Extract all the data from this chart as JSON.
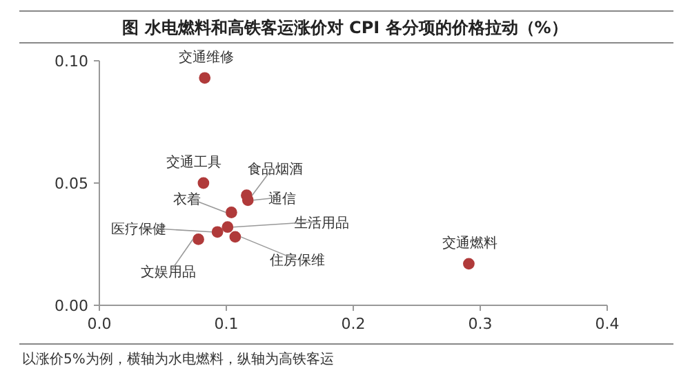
{
  "chart_data": {
    "type": "scatter",
    "title": "图  水电燃料和高铁客运涨价对 CPI 各分项的价格拉动（%）",
    "x": [
      0.083,
      0.082,
      0.116,
      0.117,
      0.104,
      0.101,
      0.093,
      0.107,
      0.078,
      0.291
    ],
    "values": [
      0.093,
      0.05,
      0.045,
      0.043,
      0.038,
      0.032,
      0.03,
      0.028,
      0.027,
      0.017
    ],
    "color": "#b03a3a",
    "marker": "circle",
    "xlim": [
      0,
      0.4
    ],
    "ylim": [
      0,
      0.1
    ],
    "xticks": [
      {
        "value": 0,
        "label": "0.0"
      },
      {
        "value": 0.1,
        "label": "0.1"
      },
      {
        "value": 0.2,
        "label": "0.2"
      },
      {
        "value": 0.3,
        "label": "0.3"
      },
      {
        "value": 0.4,
        "label": "0.4"
      }
    ],
    "yticks": [
      {
        "value": 0,
        "label": "0.00"
      },
      {
        "value": 0.05,
        "label": "0.05"
      },
      {
        "value": 0.1,
        "label": "0.10"
      }
    ],
    "annotations": [
      {
        "text": "交通维修",
        "x": 0.083,
        "y": 0.093
      },
      {
        "text": "交通工具",
        "x": 0.082,
        "y": 0.05
      },
      {
        "text": "食品烟酒",
        "x": 0.116,
        "y": 0.045
      },
      {
        "text": "通信",
        "x": 0.117,
        "y": 0.043
      },
      {
        "text": "衣着",
        "x": 0.104,
        "y": 0.038
      },
      {
        "text": "生活用品",
        "x": 0.101,
        "y": 0.032
      },
      {
        "text": "医疗保健",
        "x": 0.093,
        "y": 0.03
      },
      {
        "text": "住房保维",
        "x": 0.107,
        "y": 0.028
      },
      {
        "text": "文娱用品",
        "x": 0.078,
        "y": 0.027
      },
      {
        "text": "交通燃料",
        "x": 0.291,
        "y": 0.017
      },
      "以涨价5%为例，横轴为水电燃料，纵轴为高铁客运"
    ]
  }
}
